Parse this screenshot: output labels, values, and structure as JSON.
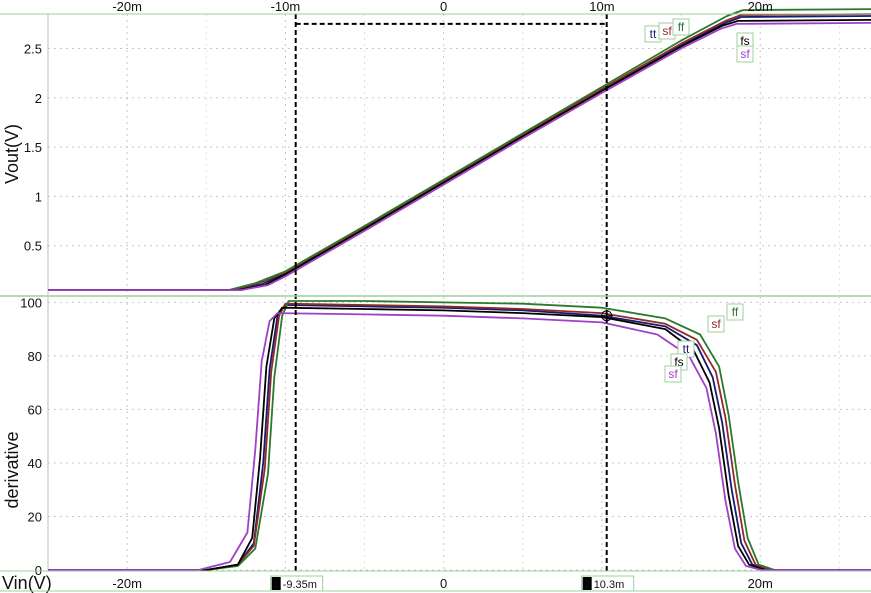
{
  "chart_data": [
    {
      "type": "line",
      "ylabel": "Vout(V)",
      "xlim": [
        -25,
        27
      ],
      "ylim": [
        0,
        2.85
      ],
      "x_ticks": [
        "-20m",
        "-10m",
        "0",
        "10m",
        "20m"
      ],
      "x_tick_values": [
        -20,
        -10,
        0,
        10,
        20
      ],
      "y_ticks": [
        "0.5",
        "1",
        "1.5",
        "2",
        "2.5"
      ],
      "y_tick_values": [
        0.5,
        1,
        1.5,
        2,
        2.5
      ],
      "grid": true,
      "series": [
        {
          "name": "tt",
          "color": "#1a1a6e",
          "x": [
            -25,
            -13.2,
            -11.5,
            -10,
            -5,
            0,
            5,
            10,
            15,
            17.8,
            18.8,
            27
          ],
          "y": [
            0.05,
            0.05,
            0.11,
            0.22,
            0.68,
            1.15,
            1.62,
            2.08,
            2.54,
            2.76,
            2.82,
            2.83
          ]
        },
        {
          "name": "sf",
          "color": "#8e2b2b",
          "x": [
            -25,
            -13.4,
            -11.7,
            -10,
            -5,
            0,
            5,
            10,
            15,
            17.8,
            18.8,
            27
          ],
          "y": [
            0.05,
            0.05,
            0.12,
            0.23,
            0.69,
            1.16,
            1.63,
            2.09,
            2.55,
            2.78,
            2.84,
            2.85
          ]
        },
        {
          "name": "ff",
          "color": "#2b7a2b",
          "x": [
            -25,
            -13.6,
            -11.9,
            -10,
            -5,
            0,
            5,
            10,
            15,
            17.9,
            18.9,
            27
          ],
          "y": [
            0.05,
            0.05,
            0.12,
            0.24,
            0.7,
            1.17,
            1.64,
            2.11,
            2.58,
            2.83,
            2.89,
            2.9
          ]
        },
        {
          "name": "fs",
          "color": "#000000",
          "x": [
            -25,
            -13.0,
            -11.3,
            -10,
            -5,
            0,
            5,
            10,
            15,
            17.6,
            18.6,
            27
          ],
          "y": [
            0.05,
            0.05,
            0.1,
            0.21,
            0.67,
            1.14,
            1.61,
            2.07,
            2.52,
            2.73,
            2.78,
            2.79
          ]
        },
        {
          "name": "sf",
          "color": "#a040c8",
          "x": [
            -25,
            -12.8,
            -11.1,
            -10,
            -5,
            0,
            5,
            10,
            15,
            17.5,
            18.5,
            27
          ],
          "y": [
            0.05,
            0.05,
            0.1,
            0.19,
            0.65,
            1.12,
            1.59,
            2.05,
            2.5,
            2.7,
            2.75,
            2.76
          ]
        }
      ]
    },
    {
      "type": "line",
      "ylabel": "derivative",
      "xlabel": "Vin(V)",
      "xlim": [
        -25,
        27
      ],
      "ylim": [
        0,
        102
      ],
      "x_ticks": [
        "-20m",
        "-10m",
        "0",
        "10m",
        "20m"
      ],
      "x_tick_values": [
        -20,
        -10,
        0,
        10,
        20
      ],
      "y_ticks": [
        "0",
        "20",
        "40",
        "60",
        "80",
        "100"
      ],
      "y_tick_values": [
        0,
        20,
        40,
        60,
        80,
        100
      ],
      "grid": true,
      "series": [
        {
          "name": "tt",
          "color": "#1a1a6e",
          "x": [
            -25,
            -15,
            -13,
            -12,
            -11.4,
            -11,
            -10.5,
            -10,
            -5,
            0,
            5,
            10,
            14,
            16,
            17,
            17.6,
            18.2,
            18.8,
            19.5,
            20.5,
            27
          ],
          "y": [
            0,
            0,
            2,
            10,
            40,
            75,
            95,
            99,
            98.5,
            98,
            97,
            95,
            91,
            84,
            72,
            55,
            30,
            10,
            2,
            0,
            0
          ]
        },
        {
          "name": "sf",
          "color": "#8e2b2b",
          "x": [
            -25,
            -15,
            -13,
            -12,
            -11.3,
            -10.9,
            -10.4,
            -10,
            -5,
            0,
            5,
            10,
            14,
            16,
            17.2,
            17.8,
            18.4,
            19.0,
            19.7,
            20.7,
            27
          ],
          "y": [
            0,
            0,
            2,
            9,
            38,
            74,
            95,
            99.5,
            99,
            98.5,
            97.5,
            96,
            92,
            86,
            74,
            57,
            32,
            11,
            2,
            0,
            0
          ]
        },
        {
          "name": "ff",
          "color": "#2b7a2b",
          "x": [
            -25,
            -15,
            -13,
            -11.9,
            -11.1,
            -10.7,
            -10.2,
            -9.8,
            -5,
            0,
            5,
            10,
            14,
            16.2,
            17.4,
            18.0,
            18.6,
            19.2,
            19.9,
            20.9,
            27
          ],
          "y": [
            0,
            0,
            1.5,
            8,
            36,
            72,
            95,
            100.5,
            100.5,
            100,
            99.5,
            98,
            94,
            88,
            76,
            58,
            33,
            12,
            2,
            0,
            0
          ]
        },
        {
          "name": "fs",
          "color": "#000000",
          "x": [
            -25,
            -15,
            -13,
            -12.1,
            -11.6,
            -11.2,
            -10.7,
            -10.2,
            -5,
            0,
            5,
            10,
            14,
            15.8,
            16.8,
            17.4,
            18.0,
            18.6,
            19.3,
            20.3,
            27
          ],
          "y": [
            0,
            0,
            2,
            12,
            42,
            76,
            94,
            98,
            97.5,
            97,
            96,
            94.5,
            90,
            82,
            70,
            53,
            28,
            9,
            2,
            0,
            0
          ]
        },
        {
          "name": "sf",
          "color": "#a040c8",
          "x": [
            -25,
            -15.5,
            -13.5,
            -12.4,
            -11.9,
            -11.5,
            -11,
            -10.5,
            -5,
            0,
            5,
            10,
            13.5,
            15.5,
            16.6,
            17.2,
            17.8,
            18.4,
            19.1,
            20.1,
            27
          ],
          "y": [
            0,
            0,
            3,
            14,
            45,
            78,
            93,
            96,
            95.5,
            95,
            94,
            92.5,
            88,
            80,
            68,
            51,
            26,
            8,
            1.5,
            0,
            0
          ]
        }
      ]
    }
  ],
  "plot_labels": {
    "top": [
      {
        "text": "tt",
        "color": "#1a1a6e"
      },
      {
        "text": "sf",
        "color": "#8e2b2b"
      },
      {
        "text": "ff",
        "color": "#2b7a2b"
      },
      {
        "text": "fs",
        "color": "#000000"
      },
      {
        "text": "sf",
        "color": "#a040c8"
      }
    ],
    "bottom": [
      {
        "text": "ff",
        "color": "#2b7a2b"
      },
      {
        "text": "sf",
        "color": "#8e2b2b"
      },
      {
        "text": "tt",
        "color": "#1a1a6e"
      },
      {
        "text": "fs",
        "color": "#000000"
      },
      {
        "text": "sf",
        "color": "#a040c8"
      }
    ]
  },
  "cursors": [
    {
      "id": "1",
      "x": -9.35,
      "label": "-9.35m"
    },
    {
      "id": "2",
      "x": 10.3,
      "label": "10.3m"
    }
  ],
  "delta_marker": {
    "x1": -9.35,
    "x2": 10.3,
    "y": 2.75
  },
  "probe_marker": {
    "x": 10.3,
    "y": 95
  },
  "colors": {
    "grid": "#c8c8c8",
    "frame": "#9ccf9c",
    "cursor": "#000000"
  }
}
